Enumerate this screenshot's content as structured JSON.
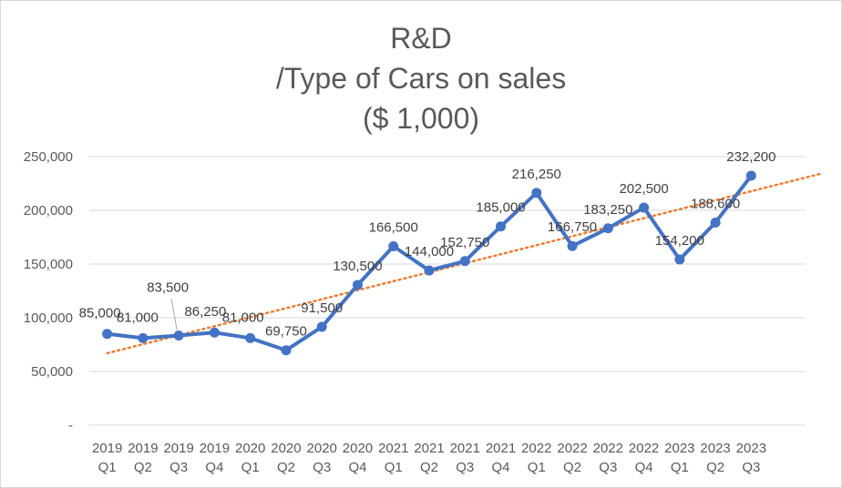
{
  "chart_data": {
    "type": "line",
    "title": {
      "line1": "R&D",
      "line2": "/Type of Cars on sales",
      "line3": "($ 1,000)"
    },
    "categories": [
      [
        "2019",
        "Q1"
      ],
      [
        "2019",
        "Q2"
      ],
      [
        "2019",
        "Q3"
      ],
      [
        "2019",
        "Q4"
      ],
      [
        "2020",
        "Q1"
      ],
      [
        "2020",
        "Q2"
      ],
      [
        "2020",
        "Q3"
      ],
      [
        "2020",
        "Q4"
      ],
      [
        "2021",
        "Q1"
      ],
      [
        "2021",
        "Q2"
      ],
      [
        "2021",
        "Q3"
      ],
      [
        "2021",
        "Q4"
      ],
      [
        "2022",
        "Q1"
      ],
      [
        "2022",
        "Q2"
      ],
      [
        "2022",
        "Q3"
      ],
      [
        "2022",
        "Q4"
      ],
      [
        "2023",
        "Q1"
      ],
      [
        "2023",
        "Q2"
      ],
      [
        "2023",
        "Q3"
      ]
    ],
    "values": [
      85000,
      81000,
      83500,
      86250,
      81000,
      69750,
      91500,
      130500,
      166500,
      144000,
      152750,
      185000,
      216250,
      166750,
      183250,
      202500,
      154200,
      188600,
      232200
    ],
    "data_labels": [
      "85,000",
      "81,000",
      "83,500",
      "86,250",
      "81,000",
      "69,750",
      "91,500",
      "130,500",
      "166,500",
      "144,000",
      "152,750",
      "185,000",
      "216,250",
      "166,750",
      "183,250",
      "202,500",
      "154,200",
      "188,600",
      "232,200"
    ],
    "y_ticks": [
      {
        "value": 0,
        "label": "-"
      },
      {
        "value": 50000,
        "label": "50,000"
      },
      {
        "value": 100000,
        "label": "100,000"
      },
      {
        "value": 150000,
        "label": "150,000"
      },
      {
        "value": 200000,
        "label": "200,000"
      },
      {
        "value": 250000,
        "label": "250,000"
      }
    ],
    "ylim": [
      0,
      250000
    ],
    "trendline": {
      "type": "linear",
      "start": 67000,
      "end": 234500
    },
    "grid": true,
    "legend": "none",
    "colors": {
      "series": "#4472c4",
      "trendline": "#ed7d31",
      "grid": "#d9d9d9",
      "text": "#595959"
    }
  }
}
